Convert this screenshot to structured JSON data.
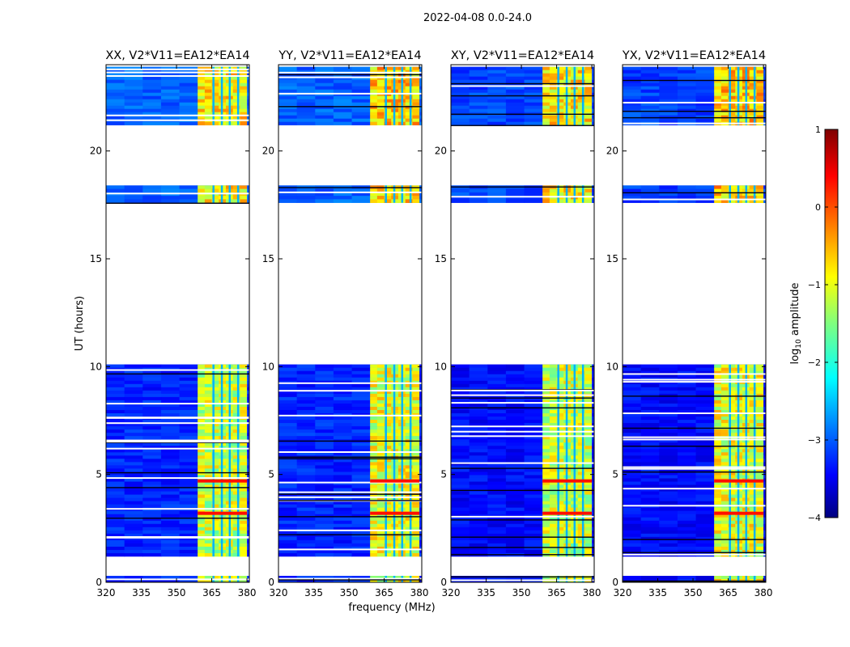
{
  "figure_title": "2022-04-08 0.0-24.0",
  "chart_data": {
    "type": "heatmap",
    "colormap": "jet",
    "panels": [
      {
        "title": "XX, V2*V11=EA12*EA14",
        "pol": "XX"
      },
      {
        "title": "YY, V2*V11=EA12*EA14",
        "pol": "YY"
      },
      {
        "title": "XY, V2*V11=EA12*EA14",
        "pol": "XY"
      },
      {
        "title": "YX, V2*V11=EA12*EA14",
        "pol": "YX"
      }
    ],
    "xlabel": "frequency (MHz)",
    "ylabel": "UT (hours)",
    "xlim": [
      320,
      381
    ],
    "ylim": [
      0,
      24
    ],
    "xticks": [
      320,
      335,
      350,
      365,
      380
    ],
    "yticks": [
      0,
      5,
      10,
      15,
      20
    ],
    "colorbar": {
      "label": "log10 amplitude",
      "label_main": "log",
      "label_sub": "10",
      "label_rest": " amplitude",
      "range": [
        -4,
        1
      ],
      "ticks": [
        1,
        0,
        -1,
        -2,
        -3,
        -4
      ],
      "tick_labels": [
        "1",
        "0",
        "−1",
        "−2",
        "−3",
        "−4"
      ]
    },
    "bright_band_mhz": [
      359,
      380
    ],
    "data_segments_ut": [
      [
        0.0,
        0.3
      ],
      [
        1.2,
        10.1
      ],
      [
        17.6,
        18.4
      ],
      [
        21.2,
        23.9
      ]
    ]
  }
}
